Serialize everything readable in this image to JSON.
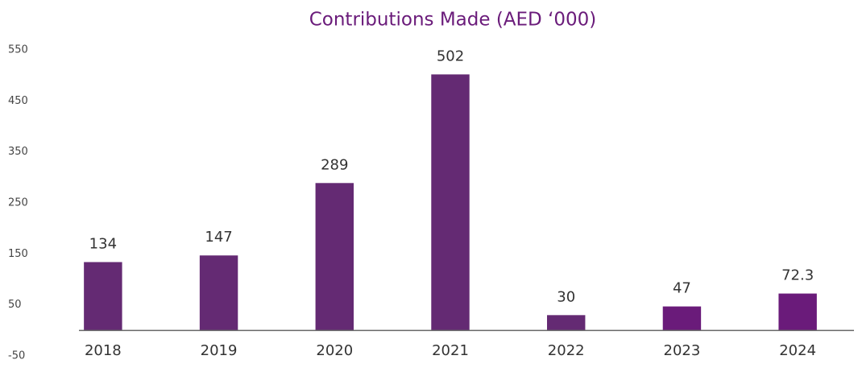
{
  "chart_data": {
    "type": "bar",
    "title": "Contributions Made (AED ‘000)",
    "categories": [
      "2018",
      "2019",
      "2020",
      "2021",
      "2022",
      "2023",
      "2024"
    ],
    "values": [
      134,
      147,
      289,
      502,
      30,
      47,
      72.3
    ],
    "colors": [
      "#642a73",
      "#642a73",
      "#642a73",
      "#642a73",
      "#642a73",
      "#6a1b7a",
      "#6a1b7a"
    ],
    "ylim": [
      -50,
      550
    ],
    "yticks": [
      -50,
      50,
      150,
      250,
      350,
      450,
      550
    ],
    "grid": false
  }
}
